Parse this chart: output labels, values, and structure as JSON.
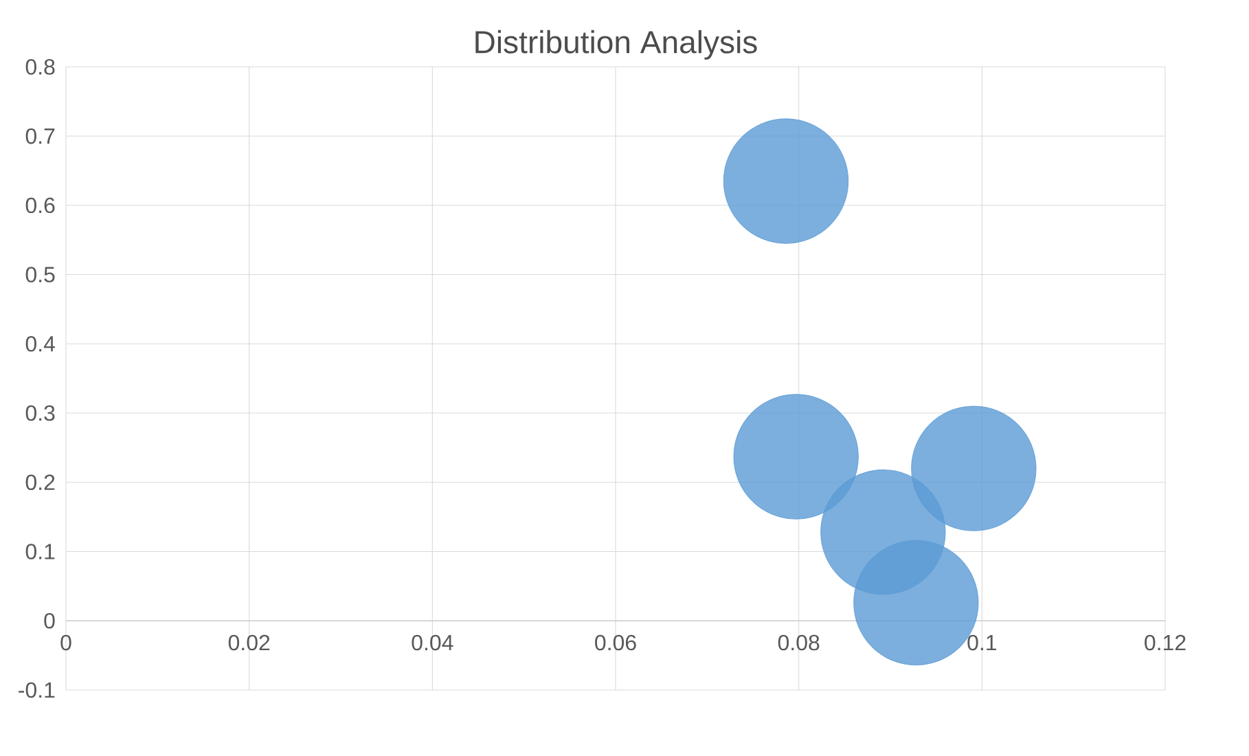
{
  "chart_data": {
    "type": "bubble",
    "title": "Distribution Analysis",
    "x": [
      0.0786,
      0.0797,
      0.0991,
      0.0892,
      0.0928
    ],
    "values": [
      0.635,
      0.237,
      0.22,
      0.128,
      0.026
    ],
    "sizes": [
      1,
      1,
      1,
      1,
      1
    ],
    "color": "#5b9bd5",
    "xlim": [
      0,
      0.12
    ],
    "xticks": [
      0,
      0.02,
      0.04,
      0.06,
      0.08,
      0.1,
      0.12
    ],
    "ylim": [
      -0.1,
      0.8
    ],
    "yticks": [
      -0.1,
      0,
      0.1,
      0.2,
      0.3,
      0.4,
      0.5,
      0.6,
      0.7,
      0.8
    ],
    "grid": true
  }
}
